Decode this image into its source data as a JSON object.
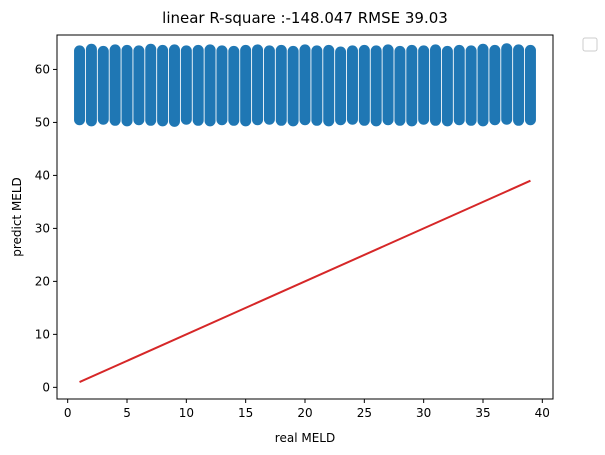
{
  "chart_data": {
    "type": "scatter",
    "title": "linear R-square :-148.047 RMSE 39.03",
    "xlabel": "real MELD",
    "ylabel": "predict MELD",
    "xlim": [
      -0.9,
      40.9
    ],
    "ylim": [
      -2.2,
      66.5
    ],
    "xticks": [
      "0",
      "5",
      "10",
      "15",
      "20",
      "25",
      "30",
      "35",
      "40"
    ],
    "yticks": [
      "0",
      "10",
      "20",
      "30",
      "40",
      "50",
      "60"
    ],
    "grid": false,
    "legend": "outside-top-right, empty",
    "series": [
      {
        "marker": "circle",
        "color": "#1f77b4",
        "x": [
          1,
          2,
          3,
          4,
          5,
          6,
          7,
          8,
          9,
          10,
          11,
          12,
          13,
          14,
          15,
          16,
          17,
          18,
          19,
          20,
          21,
          22,
          23,
          24,
          25,
          26,
          27,
          28,
          29,
          30,
          31,
          32,
          33,
          34,
          35,
          36,
          37,
          38,
          39
        ],
        "y_min": [
          50.5,
          50.3,
          50.6,
          50.4,
          50.3,
          50.5,
          50.4,
          50.3,
          50.2,
          50.6,
          50.4,
          50.3,
          50.5,
          50.4,
          50.3,
          50.5,
          50.6,
          50.4,
          50.3,
          50.5,
          50.4,
          50.3,
          50.5,
          50.6,
          50.4,
          50.3,
          50.5,
          50.4,
          50.3,
          50.6,
          50.4,
          50.3,
          50.5,
          50.4,
          50.3,
          50.5,
          50.6,
          50.4,
          50.5
        ],
        "y_max": [
          63.5,
          63.8,
          63.4,
          63.7,
          63.6,
          63.5,
          63.8,
          63.6,
          63.7,
          63.5,
          63.6,
          63.7,
          63.5,
          63.4,
          63.6,
          63.7,
          63.5,
          63.6,
          63.4,
          63.7,
          63.5,
          63.6,
          63.3,
          63.5,
          63.6,
          63.5,
          63.7,
          63.4,
          63.6,
          63.5,
          63.7,
          63.4,
          63.6,
          63.5,
          63.8,
          63.6,
          63.9,
          63.7,
          63.6
        ]
      },
      {
        "type": "line",
        "color": "#d62728",
        "x": [
          1,
          39
        ],
        "y": [
          1,
          39
        ]
      }
    ]
  }
}
